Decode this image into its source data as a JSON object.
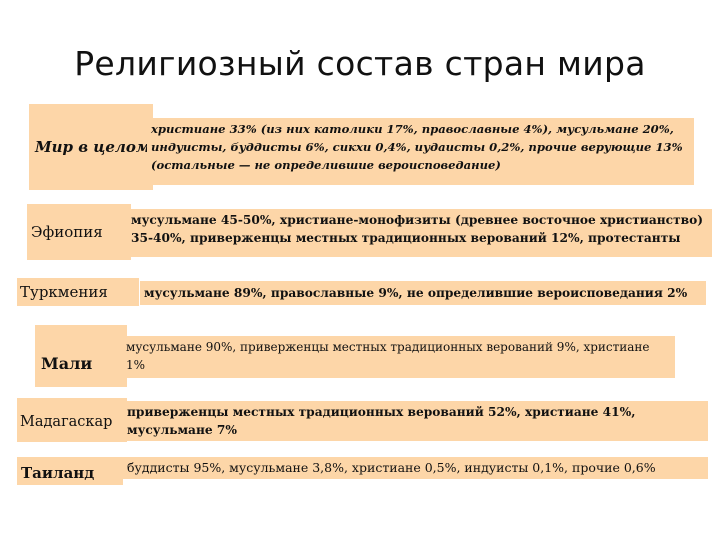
{
  "slide": {
    "title": "Религиозный состав стран мира"
  },
  "rows": [
    {
      "label": "Мир в целом",
      "text": "христиане 33% (из них католики 17%, православные 4%), мусульмане 20%, индуисты, буддисты 6%, сикхи 0,4%, иудаисты 0,2%, прочие верующие 13% (остальные — не определившие вероисповедание)"
    },
    {
      "label": "Эфиопия",
      "text": "мусульмане 45-50%, христиане-монофизиты (древнее восточное христианство) 35-40%, приверженцы местных традиционных верований 12%, протестанты"
    },
    {
      "label": "Туркмения",
      "text": "мусульмане 89%, православные 9%, не определившие вероисповедания 2%"
    },
    {
      "label": "Мали",
      "text": "мусульмане 90%, приверженцы местных традиционных верований 9%, христиане 1%"
    },
    {
      "label": "Мадагаскар",
      "text": "приверженцы местных традиционных верований 52%, христиане 41%, мусульмане 7%"
    },
    {
      "label": "Таиланд",
      "text": "буддисты 95%, мусульмане 3,8%, христиане 0,5%, индуисты 0,1%, прочие 0,6%"
    }
  ],
  "colors": {
    "box_fill": "#fdd6a8",
    "text": "#111111"
  }
}
